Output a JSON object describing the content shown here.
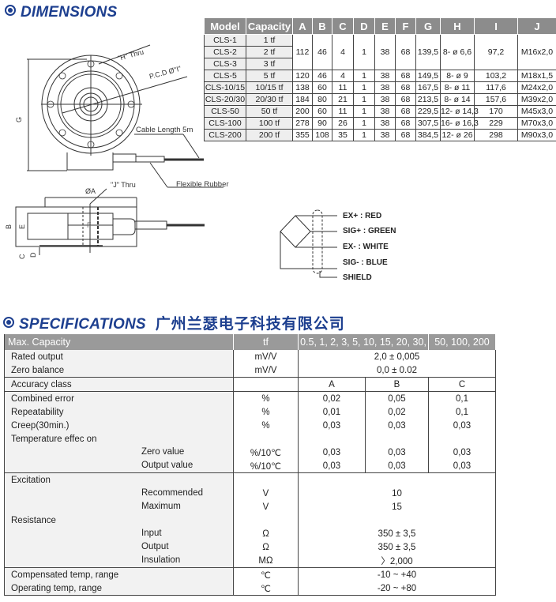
{
  "dimensions": {
    "heading": "DIMENSIONS",
    "drawing": {
      "h_thru": "\"H\" Thru",
      "pcd": "P.C.D Ø\"I\"",
      "cable_length": "Cable Length 5m",
      "flexible_rubber": "Flexible Rubber",
      "j_thru": "\"J\" Thru",
      "dia_a": "ØA",
      "g": "G",
      "b": "B",
      "e": "E",
      "c": "C",
      "d": "D",
      "f": "F"
    },
    "wiring": [
      "EX+ : RED",
      "SIG+ : GREEN",
      "EX- : WHITE",
      "SIG- : BLUE",
      "SHIELD"
    ],
    "table": {
      "headers": [
        "Model",
        "Capacity",
        "A",
        "B",
        "C",
        "D",
        "E",
        "F",
        "G",
        "H",
        "I",
        "J"
      ],
      "groups": [
        {
          "models": [
            [
              "CLS-1",
              "1 tf"
            ],
            [
              "CLS-2",
              "2 tf"
            ],
            [
              "CLS-3",
              "3 tf"
            ]
          ],
          "values": [
            "112",
            "46",
            "4",
            "1",
            "38",
            "68",
            "139,5",
            "8- ø 6,6",
            "97,2",
            "M16x2,0"
          ]
        },
        {
          "models": [
            [
              "CLS-5",
              "5 tf"
            ]
          ],
          "values": [
            "120",
            "46",
            "4",
            "1",
            "38",
            "68",
            "149,5",
            "8- ø 9",
            "103,2",
            "M18x1,5"
          ]
        },
        {
          "models": [
            [
              "CLS-10/15",
              "10/15 tf"
            ]
          ],
          "values": [
            "138",
            "60",
            "11",
            "1",
            "38",
            "68",
            "167,5",
            "8- ø 11",
            "117,6",
            "M24x2,0"
          ]
        },
        {
          "models": [
            [
              "CLS-20/30",
              "20/30 tf"
            ]
          ],
          "values": [
            "184",
            "80",
            "21",
            "1",
            "38",
            "68",
            "213,5",
            "8- ø 14",
            "157,6",
            "M39x2,0"
          ]
        },
        {
          "models": [
            [
              "CLS-50",
              "50 tf"
            ]
          ],
          "values": [
            "200",
            "60",
            "11",
            "1",
            "38",
            "68",
            "229,5",
            "12- ø 14,3",
            "170",
            "M45x3,0"
          ]
        },
        {
          "models": [
            [
              "CLS-100",
              "100 tf"
            ]
          ],
          "values": [
            "278",
            "90",
            "26",
            "1",
            "38",
            "68",
            "307,5",
            "16- ø 16,3",
            "229",
            "M70x3,0"
          ]
        },
        {
          "models": [
            [
              "CLS-200",
              "200 tf"
            ]
          ],
          "values": [
            "355",
            "108",
            "35",
            "1",
            "38",
            "68",
            "384,5",
            "12- ø 26",
            "298",
            "M90x3,0"
          ]
        }
      ]
    }
  },
  "specifications": {
    "heading": "SPECIFICATIONS",
    "company": "广州兰瑟电子科技有限公司",
    "header": {
      "label": "Max. Capacity",
      "unit": "tf",
      "range1": "0.5, 1, 2, 3, 5, 10, 15, 20, 30,",
      "range2": "50, 100, 200"
    },
    "sections": [
      [
        {
          "label": "Rated output",
          "unit": "mV/V",
          "merged": "2,0 ± 0,005"
        },
        {
          "label": "Zero balance",
          "unit": "mV/V",
          "merged": "0,0 ± 0.02"
        }
      ],
      [
        {
          "label": "Accuracy class",
          "unit": "",
          "values": [
            "A",
            "B",
            "C"
          ]
        }
      ],
      [
        {
          "label": "Combined error",
          "unit": "%",
          "values": [
            "0,02",
            "0,05",
            "0,1"
          ]
        },
        {
          "label": "Repeatability",
          "unit": "%",
          "values": [
            "0,01",
            "0,02",
            "0,1"
          ]
        },
        {
          "label": "Creep(30min.)",
          "unit": "%",
          "values": [
            "0,03",
            "0,03",
            "0,03"
          ]
        },
        {
          "label": "Temperature effec on",
          "unit": "",
          "values": [
            "",
            "",
            ""
          ]
        },
        {
          "sub": "Zero value",
          "unit": "%/10℃",
          "values": [
            "0,03",
            "0,03",
            "0,03"
          ]
        },
        {
          "sub": "Output value",
          "unit": "%/10℃",
          "values": [
            "0,03",
            "0,03",
            "0,03"
          ]
        }
      ],
      [
        {
          "label": "Excitation",
          "unit": "",
          "merged": ""
        },
        {
          "sub": "Recommended",
          "unit": "V",
          "merged": "10"
        },
        {
          "sub": "Maximum",
          "unit": "V",
          "merged": "15"
        },
        {
          "label": "Resistance",
          "unit": "",
          "merged": ""
        },
        {
          "sub": "Input",
          "unit": "Ω",
          "merged": "350 ± 3,5"
        },
        {
          "sub": "Output",
          "unit": "Ω",
          "merged": "350 ± 3,5"
        },
        {
          "sub": "Insulation",
          "unit": "MΩ",
          "merged": "〉2,000"
        }
      ],
      [
        {
          "label": "Compensated temp, range",
          "unit": "℃",
          "merged": "-10 ~ +40"
        },
        {
          "label": "Operating temp, range",
          "unit": "℃",
          "merged": "-20 ~ +80"
        }
      ]
    ]
  },
  "colors": {
    "heading": "#1d3f8f",
    "table_header": "#8c8c8c"
  }
}
